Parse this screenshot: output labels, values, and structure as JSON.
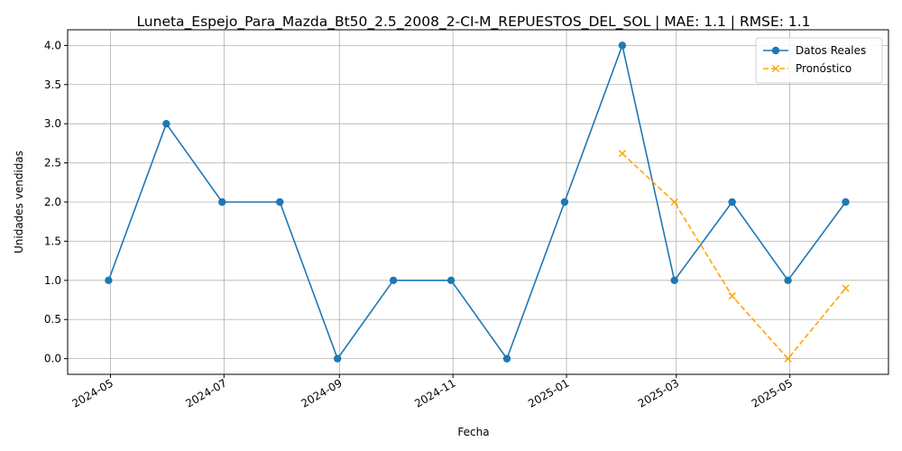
{
  "chart_data": {
    "type": "line",
    "title": "Luneta_Espejo_Para_Mazda_Bt50_2.5_2008_2-CI-M_REPUESTOS_DEL_SOL | MAE: 1.1 | RMSE: 1.1",
    "xlabel": "Fecha",
    "ylabel": "Unidades vendidas",
    "ylim": [
      -0.2,
      4.2
    ],
    "xlim": [
      "2024-04-08",
      "2025-06-23"
    ],
    "grid": true,
    "legend_position": "top-right",
    "x_ticks": [
      "2024-05",
      "2024-07",
      "2024-09",
      "2024-11",
      "2025-01",
      "2025-03",
      "2025-05"
    ],
    "x_tick_dates": [
      "2024-05-01",
      "2024-07-01",
      "2024-09-01",
      "2024-11-01",
      "2025-01-01",
      "2025-03-01",
      "2025-05-01"
    ],
    "y_ticks": [
      "0.0",
      "0.5",
      "1.0",
      "1.5",
      "2.0",
      "2.5",
      "3.0",
      "3.5",
      "4.0"
    ],
    "y_tick_values": [
      0,
      0.5,
      1,
      1.5,
      2,
      2.5,
      3,
      3.5,
      4
    ],
    "series": [
      {
        "name": "Datos Reales",
        "color": "#1f77b4",
        "style": "solid",
        "marker": "circle",
        "x": [
          "2024-04-30",
          "2024-05-31",
          "2024-06-30",
          "2024-07-31",
          "2024-08-31",
          "2024-09-30",
          "2024-10-31",
          "2024-11-30",
          "2024-12-31",
          "2025-01-31",
          "2025-02-28",
          "2025-03-31",
          "2025-04-30",
          "2025-05-31"
        ],
        "values": [
          1,
          3,
          2,
          2,
          0,
          1,
          1,
          0,
          2,
          4,
          1,
          2,
          1,
          2
        ]
      },
      {
        "name": "Pronóstico",
        "color": "#ffa500",
        "style": "dashed",
        "marker": "x",
        "x": [
          "2025-01-31",
          "2025-02-28",
          "2025-03-31",
          "2025-04-30",
          "2025-05-31"
        ],
        "values": [
          2.62,
          2.0,
          0.8,
          0.0,
          0.9
        ]
      }
    ]
  }
}
